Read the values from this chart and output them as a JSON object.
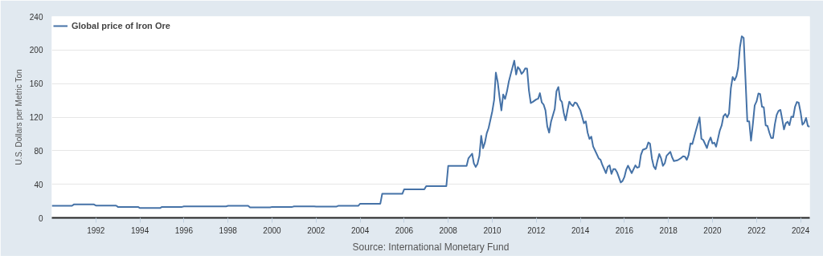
{
  "chart_data": {
    "type": "line",
    "ylabel": "U.S. Dollars per Metric Ton",
    "annotations": [
      "Source: International Monetary Fund"
    ],
    "xlim": [
      "1990-01",
      "2024-06"
    ],
    "ylim": [
      0,
      240
    ],
    "xticks": [
      "1992",
      "1994",
      "1996",
      "1998",
      "2000",
      "2002",
      "2004",
      "2006",
      "2008",
      "2010",
      "2012",
      "2014",
      "2016",
      "2018",
      "2020",
      "2022",
      "2024"
    ],
    "yticks": [
      0,
      40,
      80,
      120,
      160,
      200,
      240
    ],
    "grid": "y",
    "legend": "top left",
    "line_style": "solid",
    "series": [
      {
        "name": "Global price of Iron Ore",
        "color": "#4572a7",
        "x": [
          "1990-01",
          "1990-12",
          "1991-01",
          "1991-12",
          "1992-01",
          "1992-12",
          "1993-01",
          "1993-12",
          "1994-01",
          "1994-12",
          "1995-01",
          "1995-12",
          "1996-01",
          "1996-12",
          "1997-01",
          "1997-12",
          "1998-01",
          "1998-12",
          "1999-01",
          "1999-12",
          "2000-01",
          "2000-12",
          "2001-01",
          "2001-12",
          "2002-01",
          "2002-12",
          "2003-01",
          "2003-12",
          "2004-01",
          "2004-12",
          "2005-01",
          "2005-12",
          "2006-01",
          "2006-12",
          "2007-01",
          "2007-12",
          "2008-01",
          "2008-11",
          "2008-12",
          "2009-02",
          "2009-03",
          "2009-04",
          "2009-05",
          "2009-06",
          "2009-07",
          "2009-08",
          "2009-09",
          "2009-10",
          "2009-11",
          "2010-01",
          "2010-02",
          "2010-03",
          "2010-04",
          "2010-05",
          "2010-06",
          "2010-07",
          "2010-08",
          "2010-09",
          "2010-10",
          "2010-11",
          "2011-01",
          "2011-02",
          "2011-03",
          "2011-04",
          "2011-05",
          "2011-06",
          "2011-07",
          "2011-08",
          "2011-09",
          "2011-10",
          "2011-11",
          "2012-01",
          "2012-02",
          "2012-03",
          "2012-04",
          "2012-05",
          "2012-06",
          "2012-07",
          "2012-08",
          "2012-09",
          "2012-11",
          "2012-12",
          "2013-01",
          "2013-02",
          "2013-03",
          "2013-04",
          "2013-05",
          "2013-06",
          "2013-07",
          "2013-08",
          "2013-09",
          "2013-10",
          "2013-11",
          "2014-01",
          "2014-02",
          "2014-03",
          "2014-04",
          "2014-05",
          "2014-06",
          "2014-07",
          "2014-08",
          "2014-09",
          "2014-11",
          "2014-12",
          "2015-01",
          "2015-03",
          "2015-04",
          "2015-05",
          "2015-06",
          "2015-07",
          "2015-08",
          "2015-09",
          "2015-11",
          "2015-12",
          "2016-01",
          "2016-02",
          "2016-03",
          "2016-05",
          "2016-06",
          "2016-07",
          "2016-08",
          "2016-09",
          "2016-10",
          "2016-11",
          "2017-01",
          "2017-02",
          "2017-03",
          "2017-04",
          "2017-05",
          "2017-06",
          "2017-07",
          "2017-08",
          "2017-09",
          "2017-10",
          "2017-11",
          "2017-12",
          "2018-02",
          "2018-03",
          "2018-04",
          "2018-06",
          "2018-08",
          "2018-09",
          "2018-10",
          "2018-11",
          "2018-12",
          "2019-01",
          "2019-02",
          "2019-04",
          "2019-05",
          "2019-06",
          "2019-07",
          "2019-08",
          "2019-09",
          "2019-10",
          "2019-11",
          "2019-12",
          "2020-01",
          "2020-02",
          "2020-03",
          "2020-04",
          "2020-05",
          "2020-06",
          "2020-07",
          "2020-08",
          "2020-09",
          "2020-10",
          "2020-11",
          "2020-12",
          "2021-01",
          "2021-02",
          "2021-03",
          "2021-04",
          "2021-05",
          "2021-06",
          "2021-07",
          "2021-08",
          "2021-09",
          "2021-10",
          "2021-11",
          "2021-12",
          "2022-01",
          "2022-02",
          "2022-03",
          "2022-04",
          "2022-05",
          "2022-06",
          "2022-07",
          "2022-08",
          "2022-09",
          "2022-10",
          "2022-11",
          "2022-12",
          "2023-01",
          "2023-02",
          "2023-03",
          "2023-04",
          "2023-05",
          "2023-06",
          "2023-07",
          "2023-08",
          "2023-09",
          "2023-10",
          "2023-11",
          "2023-12",
          "2024-01",
          "2024-02",
          "2024-03",
          "2024-04",
          "2024-05",
          "2024-06"
        ],
        "values": [
          14.3,
          14.3,
          15.9,
          15.9,
          14.6,
          14.6,
          13.0,
          13.0,
          11.7,
          11.7,
          13.0,
          13.0,
          13.6,
          13.6,
          13.6,
          13.6,
          14.3,
          14.3,
          12.4,
          12.4,
          13.0,
          13.0,
          13.6,
          13.6,
          13.3,
          13.3,
          14.3,
          14.3,
          16.8,
          16.8,
          28.6,
          28.6,
          34.0,
          34.0,
          37.8,
          37.8,
          61.9,
          61.9,
          70.8,
          76.5,
          65.0,
          60.6,
          64.4,
          74.0,
          97.8,
          82.9,
          89.8,
          100.8,
          107.1,
          127.0,
          140.6,
          173.0,
          162.0,
          144.0,
          128.0,
          147.0,
          141.7,
          150.5,
          162.0,
          170.8,
          187.3,
          170.8,
          179.7,
          177.0,
          171.6,
          174.0,
          178.0,
          177.8,
          151.7,
          136.8,
          138.0,
          141.2,
          142.0,
          148.6,
          137.5,
          135.0,
          128.0,
          109.0,
          101.5,
          114.5,
          129.5,
          151.0,
          155.9,
          140.6,
          138.0,
          124.8,
          116.2,
          128.0,
          138.5,
          135.0,
          133.3,
          137.5,
          136.5,
          128.0,
          120.0,
          112.7,
          115.0,
          101.6,
          94.0,
          96.8,
          85.0,
          80.3,
          70.8,
          69.2,
          62.9,
          53.3,
          61.0,
          62.5,
          52.4,
          58.0,
          58.0,
          54.3,
          42.2,
          43.8,
          48.6,
          57.5,
          62.2,
          53.3,
          58.0,
          62.5,
          59.7,
          60.6,
          74.9,
          81.0,
          82.9,
          89.8,
          88.3,
          70.8,
          61.3,
          58.0,
          67.6,
          76.0,
          70.8,
          61.9,
          65.0,
          74.0,
          78.7,
          72.4,
          67.6,
          68.6,
          71.4,
          73.3,
          73.0,
          69.2,
          74.9,
          88.6,
          88.0,
          104.0,
          111.7,
          119.7,
          94.3,
          92.7,
          88.0,
          83.2,
          91.0,
          95.7,
          88.6,
          89.5,
          84.8,
          94.3,
          104.0,
          110.0,
          121.0,
          123.8,
          119.7,
          124.4,
          154.6,
          167.9,
          164.0,
          168.8,
          178.3,
          203.7,
          216.4,
          214.5,
          165.7,
          115.0,
          115.0,
          92.0,
          112.0,
          134.0,
          138.7,
          148.3,
          147.6,
          132.4,
          131.7,
          110.2,
          109.5,
          101.6,
          95.2,
          95.2,
          111.7,
          122.8,
          127.6,
          128.6,
          118.0,
          105.4,
          112.7,
          114.6,
          110.5,
          120.6,
          120.0,
          132.4,
          138.1,
          137.2,
          126.0,
          111.0,
          113.3,
          119.0,
          109.5,
          108.5
        ]
      }
    ]
  }
}
